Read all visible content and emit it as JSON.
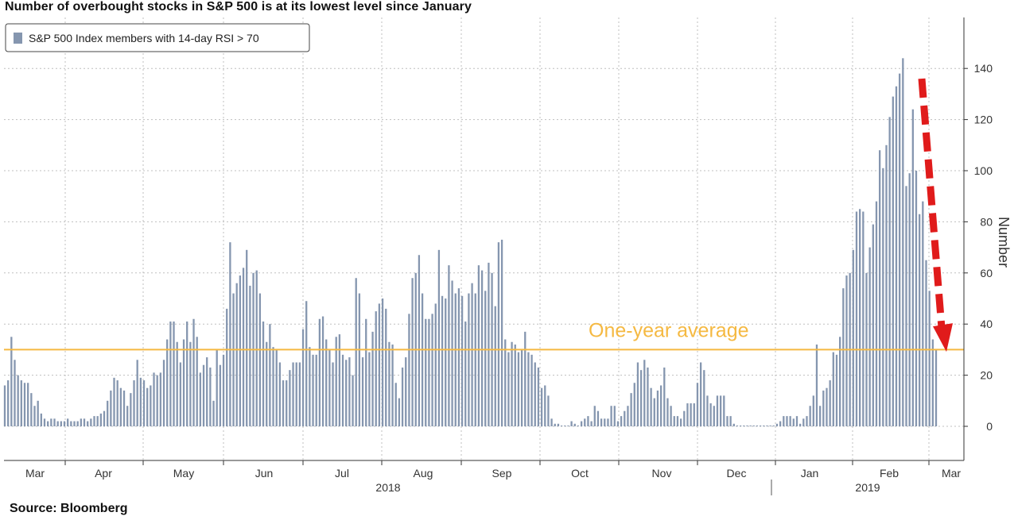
{
  "title": "Number of overbought stocks in S&P 500 is at its lowest level since January",
  "source": "Source: Bloomberg",
  "colors": {
    "bar": "#8596af",
    "average_line": "#f5b942",
    "arrow": "#e01b1b",
    "grid": "#bfbfbf"
  },
  "chart_data": {
    "type": "bar",
    "title": "Number of overbought stocks in S&P 500 is at its lowest level since January",
    "ylabel": "Number",
    "ylim": [
      -12,
      158
    ],
    "yticks": [
      0,
      20,
      40,
      60,
      80,
      100,
      120,
      140
    ],
    "grid": true,
    "legend_position": "top-left",
    "months": [
      "Mar",
      "Apr",
      "May",
      "Jun",
      "Jul",
      "Aug",
      "Sep",
      "Oct",
      "Nov",
      "Dec",
      "Jan",
      "Feb",
      "Mar"
    ],
    "years": [
      "2018",
      "2019"
    ],
    "series": [
      {
        "name": "S&P 500 Index members with 14-day RSI > 70",
        "values": [
          16,
          18,
          35,
          26,
          20,
          18,
          17,
          17,
          13,
          8,
          10,
          5,
          3,
          2,
          3,
          3,
          2,
          2,
          2,
          3,
          2,
          2,
          2,
          3,
          3,
          2,
          3,
          4,
          4,
          5,
          6,
          10,
          14,
          19,
          18,
          15,
          14,
          8,
          13,
          18,
          26,
          19,
          18,
          15,
          16,
          21,
          20,
          21,
          26,
          34,
          41,
          41,
          33,
          25,
          34,
          41,
          33,
          42,
          35,
          21,
          24,
          27,
          23,
          10,
          30,
          24,
          28,
          46,
          72,
          52,
          56,
          59,
          62,
          69,
          55,
          60,
          61,
          52,
          41,
          33,
          40,
          31,
          30,
          25,
          18,
          18,
          22,
          25,
          25,
          25,
          38,
          49,
          31,
          28,
          28,
          42,
          43,
          34,
          30,
          25,
          35,
          36,
          28,
          26,
          27,
          20,
          58,
          52,
          27,
          42,
          29,
          37,
          45,
          48,
          50,
          46,
          33,
          32,
          17,
          11,
          23,
          27,
          44,
          58,
          60,
          67,
          52,
          42,
          42,
          44,
          48,
          69,
          51,
          50,
          63,
          57,
          52,
          54,
          51,
          41,
          52,
          56,
          52,
          63,
          61,
          53,
          64,
          60,
          47,
          72,
          73,
          34,
          29,
          33,
          32,
          29,
          30,
          37,
          29,
          28,
          25,
          23,
          15,
          16,
          12,
          3,
          1,
          1,
          0,
          0,
          0,
          2,
          1,
          0,
          2,
          3,
          4,
          2,
          8,
          6,
          3,
          3,
          3,
          8,
          8,
          2,
          4,
          6,
          8,
          13,
          17,
          25,
          22,
          26,
          23,
          15,
          11,
          14,
          16,
          23,
          11,
          8,
          4,
          4,
          3,
          6,
          9,
          9,
          9,
          17,
          25,
          22,
          12,
          9,
          8,
          12,
          12,
          12,
          4,
          4,
          1,
          0,
          0,
          0,
          0,
          0,
          0,
          0,
          0,
          0,
          0,
          0,
          0,
          1,
          2,
          4,
          4,
          4,
          3,
          4,
          1,
          3,
          4,
          8,
          12,
          32,
          8,
          14,
          15,
          18,
          29,
          28,
          35,
          54,
          59,
          60,
          69,
          84,
          85,
          84,
          60,
          70,
          79,
          88,
          108,
          101,
          110,
          121,
          129,
          133,
          138,
          144,
          94,
          99,
          124,
          100,
          83,
          88,
          65,
          53,
          34,
          30
        ]
      }
    ],
    "annotations": [
      {
        "type": "hline",
        "label": "One-year average",
        "value": 30
      },
      {
        "type": "arrow",
        "label": "",
        "from_value": 136,
        "to_value": 36
      }
    ]
  }
}
